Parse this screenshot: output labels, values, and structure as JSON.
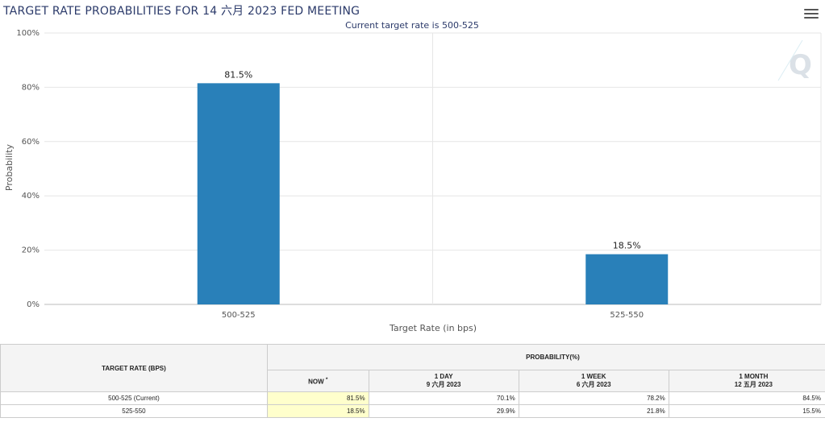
{
  "title": "TARGET RATE PROBABILITIES FOR 14 六月 2023 FED MEETING",
  "menu_icon": "hamburger-menu-icon",
  "watermark_icon": "q-logo-icon",
  "chart_data": {
    "type": "bar",
    "subtitle": "Current target rate is 500-525",
    "categories": [
      "500-525",
      "525-550"
    ],
    "values": [
      81.5,
      18.5
    ],
    "data_labels": [
      "81.5%",
      "18.5%"
    ],
    "xlabel": "Target Rate (in bps)",
    "ylabel": "Probability",
    "ylim": [
      0,
      100
    ],
    "yticks": [
      "0%",
      "20%",
      "40%",
      "60%",
      "80%",
      "100%"
    ],
    "bar_color": "#2980b9",
    "grid": true
  },
  "table": {
    "col_target": "TARGET RATE (BPS)",
    "col_prob": "PROBABILITY(%)",
    "sub_headers": [
      {
        "line1": "NOW",
        "line2": "",
        "mark": "*"
      },
      {
        "line1": "1 DAY",
        "line2": "9 六月 2023"
      },
      {
        "line1": "1 WEEK",
        "line2": "6 六月 2023"
      },
      {
        "line1": "1 MONTH",
        "line2": "12 五月 2023"
      }
    ],
    "rows": [
      {
        "rate": "500-525 (Current)",
        "now": "81.5%",
        "day": "70.1%",
        "week": "78.2%",
        "month": "84.5%"
      },
      {
        "rate": "525-550",
        "now": "18.5%",
        "day": "29.9%",
        "week": "21.8%",
        "month": "15.5%"
      }
    ]
  }
}
